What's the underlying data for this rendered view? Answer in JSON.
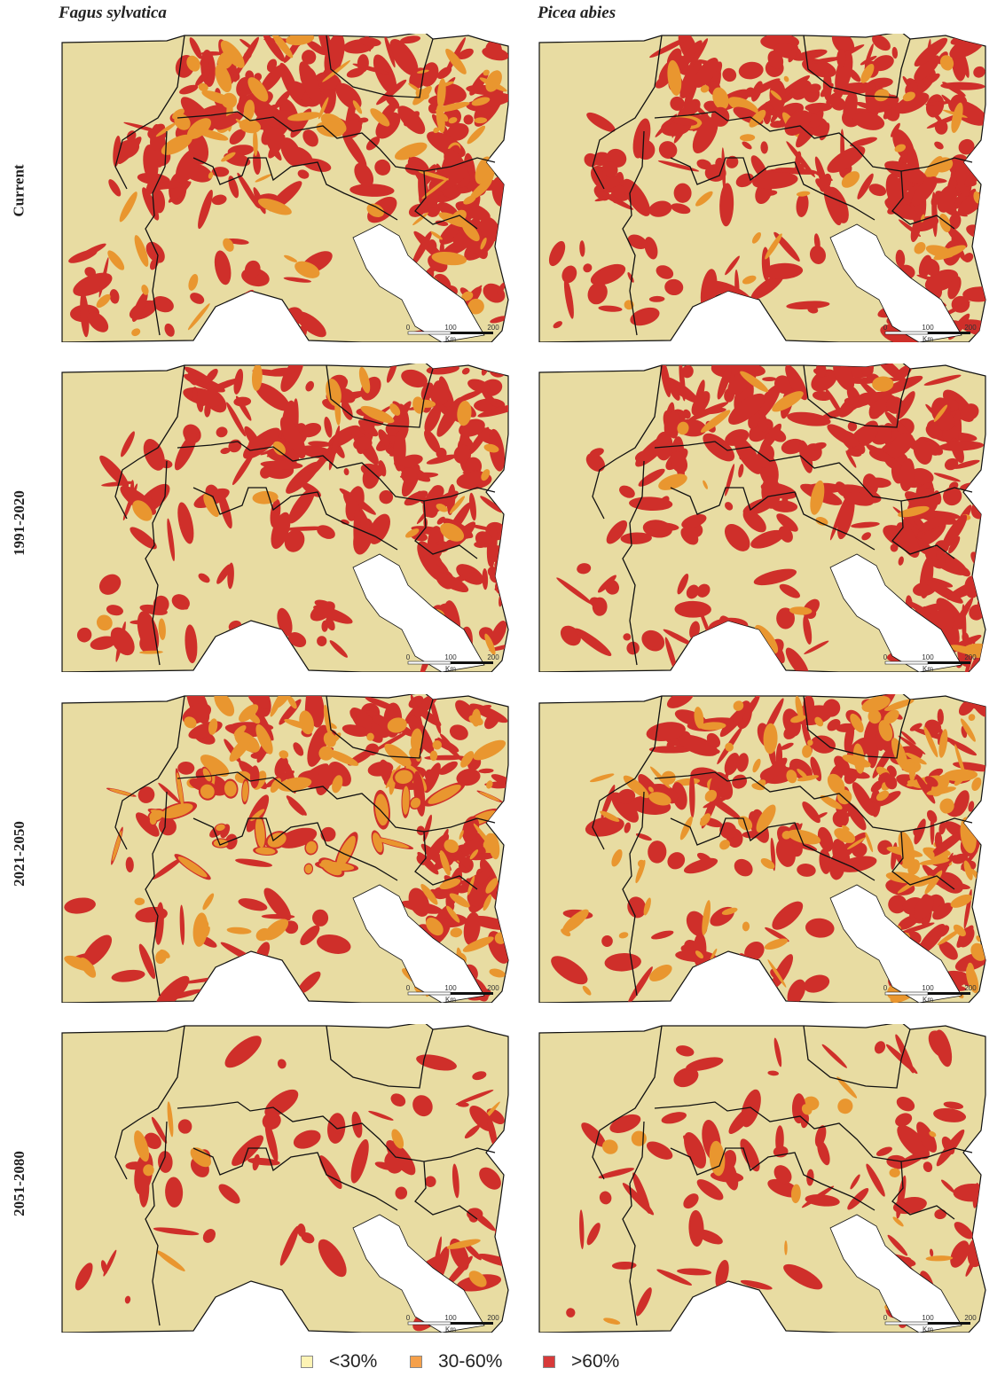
{
  "columns": [
    "Fagus sylvatica",
    "Picea abies"
  ],
  "rows": [
    "Current",
    "1991-2020",
    "2021-2050",
    "2051-2080"
  ],
  "scale_bar": {
    "ticks": [
      "0",
      "100",
      "200"
    ],
    "unit": "Km"
  },
  "legend": [
    {
      "label": "<30%",
      "color": "#fdf3b4"
    },
    {
      "label": "30-60%",
      "color": "#f5a04a"
    },
    {
      "label": ">60%",
      "color": "#d83a3a"
    }
  ],
  "map_colors": {
    "land": "#e8dca2",
    "mid": "#e9962f",
    "high": "#cf2f2a",
    "sea": "#ffffff",
    "border": "#111111"
  },
  "panels": [
    {
      "column": "Fagus sylvatica",
      "period": "Current",
      "high_cover": 0.62,
      "mid_cover": 0.1
    },
    {
      "column": "Picea abies",
      "period": "Current",
      "high_cover": 0.7,
      "mid_cover": 0.04
    },
    {
      "column": "Fagus sylvatica",
      "period": "1991-2020",
      "high_cover": 0.6,
      "mid_cover": 0.03
    },
    {
      "column": "Picea abies",
      "period": "1991-2020",
      "high_cover": 0.66,
      "mid_cover": 0.02
    },
    {
      "column": "Fagus sylvatica",
      "period": "2021-2050",
      "high_cover": 0.5,
      "mid_cover": 0.15
    },
    {
      "column": "Picea abies",
      "period": "2021-2050",
      "high_cover": 0.56,
      "mid_cover": 0.14
    },
    {
      "column": "Fagus sylvatica",
      "period": "2051-2080",
      "high_cover": 0.28,
      "mid_cover": 0.02
    },
    {
      "column": "Picea abies",
      "period": "2051-2080",
      "high_cover": 0.36,
      "mid_cover": 0.03
    }
  ]
}
